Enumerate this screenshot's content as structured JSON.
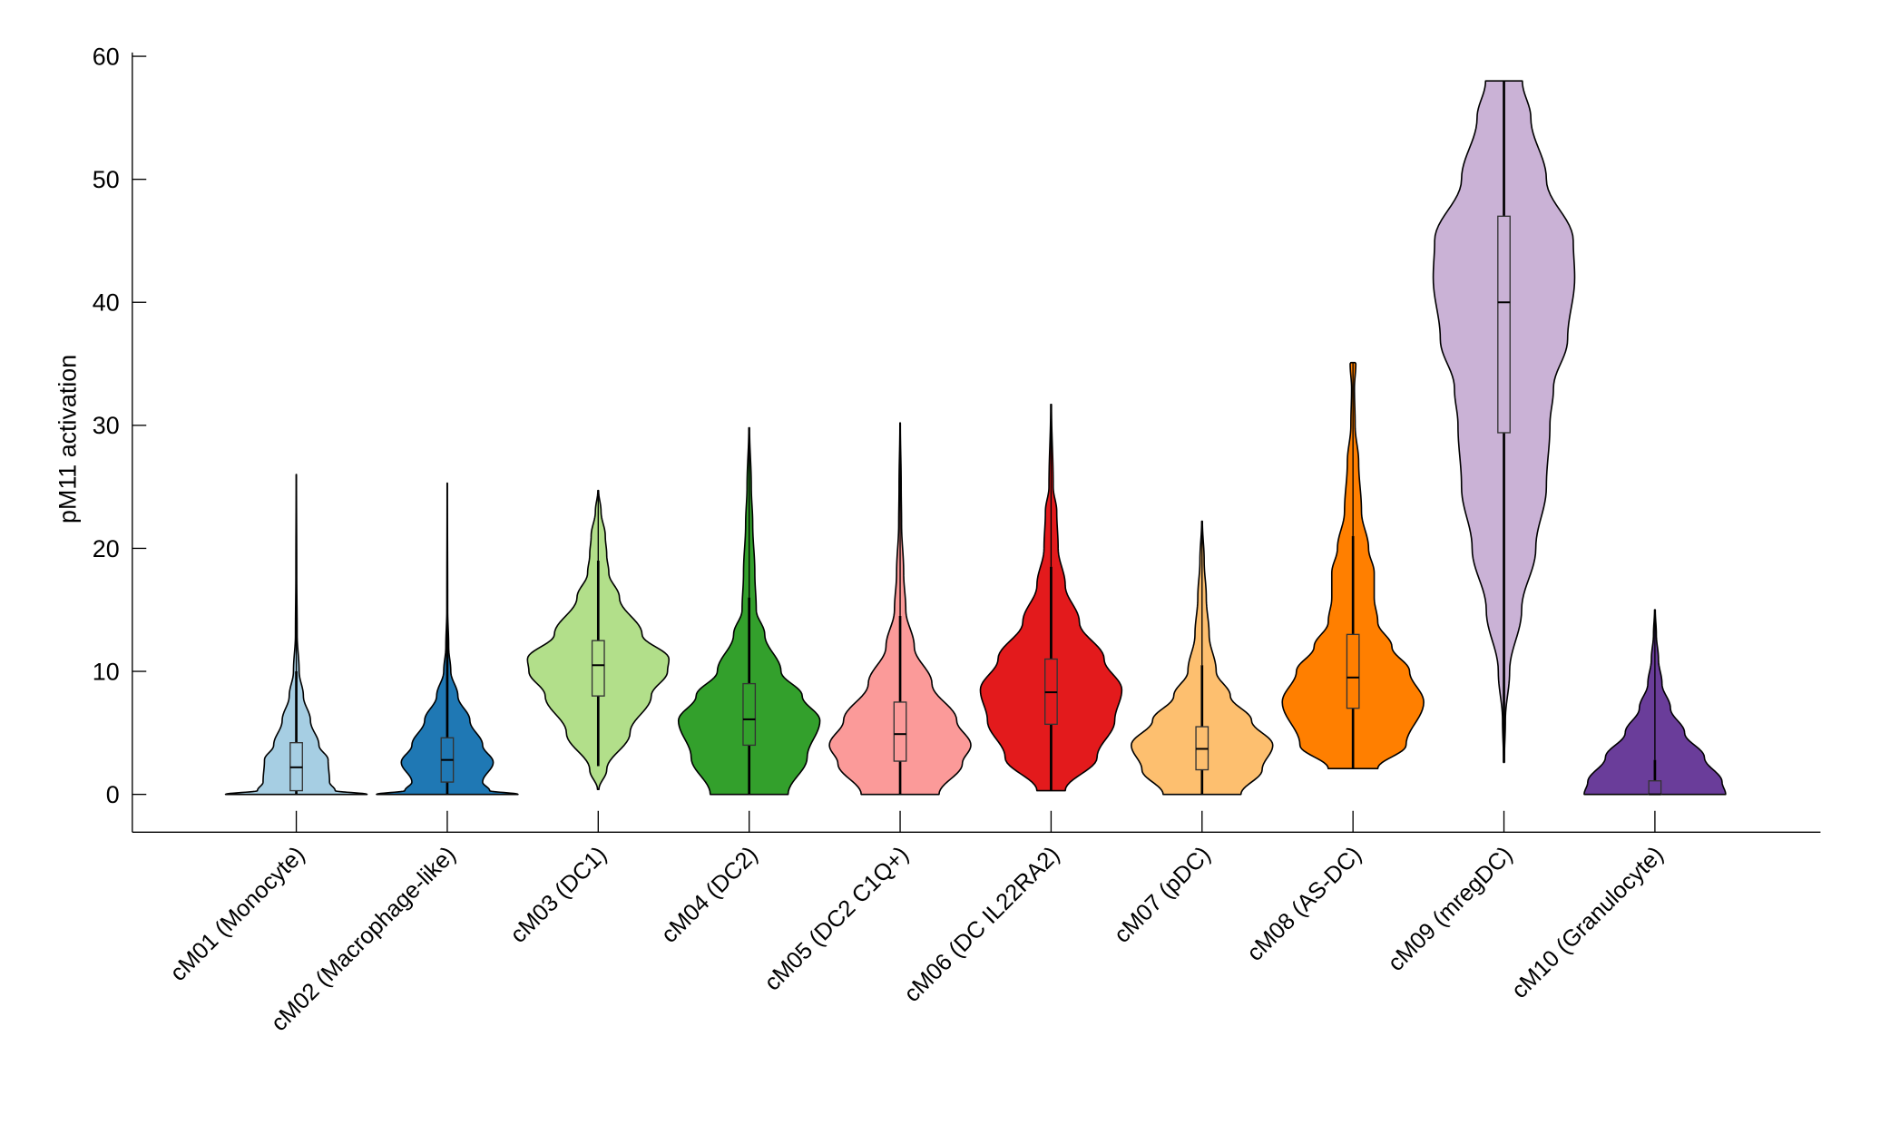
{
  "chart_data": {
    "type": "violin",
    "title": "",
    "xlabel": "",
    "ylabel": "pM11 activation",
    "ylim": [
      -3,
      61
    ],
    "yticks": [
      0,
      10,
      20,
      30,
      40,
      50,
      60
    ],
    "grid": false,
    "legend": "none",
    "categories": [
      "cM01 (Monocyte)",
      "cM02 (Macrophage-like)",
      "cM03 (DC1)",
      "cM04 (DC2)",
      "cM05 (DC2 C1Q+)",
      "cM06 (DC IL22RA2)",
      "cM07 (pDC)",
      "cM08 (AS-DC)",
      "cM09 (mregDC)",
      "cM10 (Granulocyte)"
    ],
    "series": [
      {
        "name": "cM01 (Monocyte)",
        "color": "#a6cee3",
        "min": 0,
        "max": 26,
        "q1": 0.3,
        "median": 2.2,
        "q3": 4.2,
        "whisker_low": 0,
        "whisker_high": 10,
        "density": [
          [
            0,
            1.0
          ],
          [
            0.3,
            0.55
          ],
          [
            1,
            0.47
          ],
          [
            2.8,
            0.45
          ],
          [
            4,
            0.32
          ],
          [
            6,
            0.2
          ],
          [
            8,
            0.1
          ],
          [
            10,
            0.04
          ],
          [
            13,
            0.012
          ],
          [
            18,
            0.006
          ],
          [
            26,
            0.002
          ]
        ]
      },
      {
        "name": "cM02 (Macrophage-like)",
        "color": "#1f78b4",
        "min": 0,
        "max": 25.3,
        "q1": 1.0,
        "median": 2.8,
        "q3": 4.6,
        "whisker_low": 0,
        "whisker_high": 14,
        "density": [
          [
            0,
            1.0
          ],
          [
            0.3,
            0.6
          ],
          [
            1,
            0.5
          ],
          [
            2.6,
            0.65
          ],
          [
            4,
            0.5
          ],
          [
            6,
            0.32
          ],
          [
            8,
            0.15
          ],
          [
            10,
            0.05
          ],
          [
            12,
            0.02
          ],
          [
            15,
            0.006
          ],
          [
            25.3,
            0.002
          ]
        ]
      },
      {
        "name": "cM03 (DC1)",
        "color": "#b2df8a",
        "min": 0.4,
        "max": 24.7,
        "q1": 8.0,
        "median": 10.5,
        "q3": 12.5,
        "whisker_low": 2.3,
        "whisker_high": 19,
        "density": [
          [
            0.4,
            0.01
          ],
          [
            2,
            0.12
          ],
          [
            5,
            0.45
          ],
          [
            8,
            0.75
          ],
          [
            10,
            0.98
          ],
          [
            11,
            1.0
          ],
          [
            13,
            0.62
          ],
          [
            16,
            0.3
          ],
          [
            18,
            0.15
          ],
          [
            19.5,
            0.12
          ],
          [
            21,
            0.1
          ],
          [
            23,
            0.04
          ],
          [
            24.7,
            0.005
          ]
        ]
      },
      {
        "name": "cM04 (DC2)",
        "color": "#33a02c",
        "min": 0,
        "max": 29.8,
        "q1": 4.0,
        "median": 6.1,
        "q3": 9.0,
        "whisker_low": 0,
        "whisker_high": 16,
        "density": [
          [
            0,
            0.55
          ],
          [
            3,
            0.82
          ],
          [
            6,
            1.0
          ],
          [
            8,
            0.75
          ],
          [
            10,
            0.45
          ],
          [
            13,
            0.22
          ],
          [
            15,
            0.1
          ],
          [
            18,
            0.08
          ],
          [
            22,
            0.05
          ],
          [
            25,
            0.03
          ],
          [
            29.8,
            0.005
          ]
        ]
      },
      {
        "name": "cM05 (DC2 C1Q+)",
        "color": "#fb9a99",
        "min": 0,
        "max": 30.2,
        "q1": 2.7,
        "median": 4.9,
        "q3": 7.5,
        "whisker_low": 0,
        "whisker_high": 14.5,
        "density": [
          [
            0,
            0.55
          ],
          [
            2.5,
            0.88
          ],
          [
            4,
            1.0
          ],
          [
            6,
            0.8
          ],
          [
            9,
            0.45
          ],
          [
            12,
            0.2
          ],
          [
            15,
            0.08
          ],
          [
            18,
            0.05
          ],
          [
            22,
            0.02
          ],
          [
            25,
            0.015
          ],
          [
            30.2,
            0.003
          ]
        ]
      },
      {
        "name": "cM06 (DC IL22RA2)",
        "color": "#e31a1c",
        "min": 0.3,
        "max": 31.7,
        "q1": 5.7,
        "median": 8.3,
        "q3": 11.0,
        "whisker_low": 0.3,
        "whisker_high": 18.5,
        "density": [
          [
            0.3,
            0.2
          ],
          [
            3,
            0.65
          ],
          [
            6,
            0.9
          ],
          [
            8.5,
            1.0
          ],
          [
            11,
            0.75
          ],
          [
            14,
            0.4
          ],
          [
            17,
            0.2
          ],
          [
            20,
            0.1
          ],
          [
            23,
            0.08
          ],
          [
            25,
            0.03
          ],
          [
            31.7,
            0.005
          ]
        ]
      },
      {
        "name": "cM07 (pDC)",
        "color": "#fdbf6f",
        "min": 0,
        "max": 22.2,
        "q1": 2.0,
        "median": 3.7,
        "q3": 5.5,
        "whisker_low": 0,
        "whisker_high": 10.5,
        "density": [
          [
            0,
            0.55
          ],
          [
            2,
            0.85
          ],
          [
            4,
            1.0
          ],
          [
            6,
            0.7
          ],
          [
            8,
            0.4
          ],
          [
            10,
            0.2
          ],
          [
            13,
            0.1
          ],
          [
            16,
            0.06
          ],
          [
            19,
            0.03
          ],
          [
            22.2,
            0.005
          ]
        ]
      },
      {
        "name": "cM08 (AS-DC)",
        "color": "#ff7f00",
        "min": 2.1,
        "max": 35.1,
        "q1": 7.0,
        "median": 9.5,
        "q3": 13.0,
        "whisker_low": 2.1,
        "whisker_high": 21,
        "density": [
          [
            2.1,
            0.35
          ],
          [
            4,
            0.75
          ],
          [
            7.5,
            1.0
          ],
          [
            10,
            0.8
          ],
          [
            12,
            0.55
          ],
          [
            14,
            0.35
          ],
          [
            16,
            0.3
          ],
          [
            18,
            0.3
          ],
          [
            20,
            0.22
          ],
          [
            23,
            0.12
          ],
          [
            27,
            0.08
          ],
          [
            30,
            0.03
          ],
          [
            33,
            0.02
          ],
          [
            35,
            0.04
          ],
          [
            35.1,
            0.03
          ]
        ]
      },
      {
        "name": "cM09 (mregDC)",
        "color": "#cab2d6",
        "min": 2.6,
        "max": 58,
        "q1": 29.4,
        "median": 40.0,
        "q3": 47.0,
        "whisker_low": 2.6,
        "whisker_high": 58,
        "density": [
          [
            2.6,
            0.005
          ],
          [
            6,
            0.02
          ],
          [
            10,
            0.08
          ],
          [
            15,
            0.25
          ],
          [
            20,
            0.45
          ],
          [
            25,
            0.6
          ],
          [
            30,
            0.65
          ],
          [
            33,
            0.7
          ],
          [
            37,
            0.9
          ],
          [
            42,
            1.0
          ],
          [
            45,
            0.98
          ],
          [
            50,
            0.6
          ],
          [
            55,
            0.38
          ],
          [
            58,
            0.26
          ]
        ]
      },
      {
        "name": "cM10 (Granulocyte)",
        "color": "#6a3d9a",
        "min": 0,
        "max": 15,
        "q1": 0,
        "median": 0,
        "q3": 1.1,
        "whisker_low": 0,
        "whisker_high": 2.8,
        "density": [
          [
            0,
            1.0
          ],
          [
            1,
            0.95
          ],
          [
            3,
            0.7
          ],
          [
            5,
            0.42
          ],
          [
            7,
            0.22
          ],
          [
            9,
            0.1
          ],
          [
            11,
            0.05
          ],
          [
            13,
            0.02
          ],
          [
            15,
            0.005
          ]
        ]
      }
    ]
  }
}
